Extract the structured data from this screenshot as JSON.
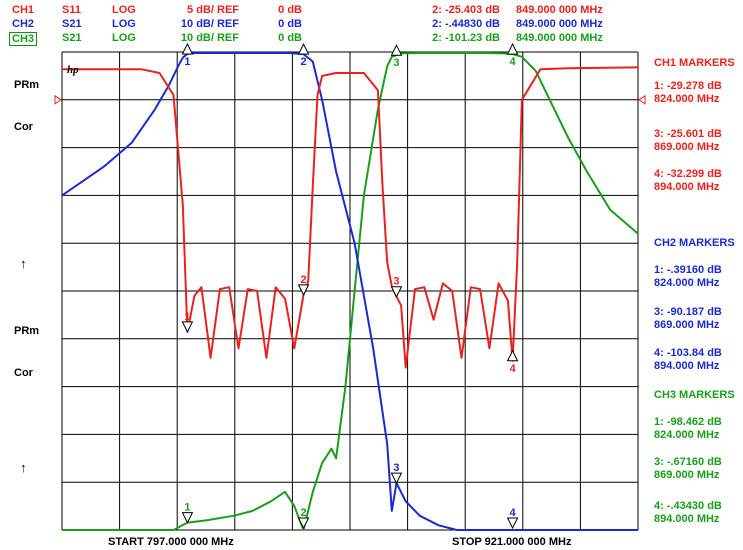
{
  "header": {
    "channels": [
      {
        "ch": "CH1",
        "param": "S11",
        "format": "LOG",
        "scale": "5 dB/ REF",
        "ref": "0 dB",
        "marker_value": "2: -25.403 dB",
        "marker_freq": "849.000 000 MHz",
        "color": "#e8221e",
        "boxed": false
      },
      {
        "ch": "CH2",
        "param": "S21",
        "format": "LOG",
        "scale": "10 dB/ REF",
        "ref": "0 dB",
        "marker_value": "2: -.44830 dB",
        "marker_freq": "849.000 000 MHz",
        "color": "#1a2ad0",
        "boxed": false
      },
      {
        "ch": "CH3",
        "param": "S21",
        "format": "LOG",
        "scale": "10 dB/ REF",
        "ref": "0 dB",
        "marker_value": "2: -101.23 dB",
        "marker_freq": "849.000 000 MHz",
        "color": "#1a9e1a",
        "boxed": true
      }
    ]
  },
  "left_labels": {
    "prm1": "PRm",
    "cor1": "Cor",
    "arrow1": "↑",
    "prm2": "PRm",
    "cor2": "Cor",
    "arrow2": "↑"
  },
  "logo": "hp",
  "footer": {
    "start": "START 797.000 000 MHz",
    "stop": "STOP  921.000 000 MHz"
  },
  "side_panel": {
    "ch1": {
      "title": "CH1 MARKERS",
      "color": "#e8221e",
      "entries": [
        [
          "1: -29.278 dB",
          "824.000 MHz"
        ],
        [
          "3: -25.601 dB",
          "869.000 MHz"
        ],
        [
          "4: -32.299 dB",
          "894.000 MHz"
        ]
      ]
    },
    "ch2": {
      "title": "CH2 MARKERS",
      "color": "#1a2ad0",
      "entries": [
        [
          "1: -.39160 dB",
          "824.000 MHz"
        ],
        [
          "3: -90.187 dB",
          "869.000 MHz"
        ],
        [
          "4: -103.84 dB",
          "894.000 MHz"
        ]
      ]
    },
    "ch3": {
      "title": "CH3 MARKERS",
      "color": "#1a9e1a",
      "entries": [
        [
          "1: -98.462 dB",
          "824.000 MHz"
        ],
        [
          "3: -.67160 dB",
          "869.000 MHz"
        ],
        [
          "4: -.43430 dB",
          "894.000 MHz"
        ]
      ]
    }
  },
  "chart_data": {
    "type": "line",
    "x_range_mhz": [
      797,
      921
    ],
    "grid": true,
    "series": [
      {
        "name": "CH1",
        "color": "#e8221e",
        "unit": "dB",
        "scale_db_per_div": 5,
        "ref_db": 0,
        "x": [
          797,
          814,
          818,
          821,
          823,
          824,
          825.5,
          827,
          829,
          831,
          833,
          835,
          837,
          839,
          841,
          843,
          845,
          847,
          849,
          850,
          851,
          852,
          853,
          856,
          862,
          865,
          866,
          867,
          868,
          869,
          870,
          871,
          873,
          875,
          877,
          879,
          881,
          883,
          885,
          887,
          889,
          891,
          893,
          894,
          895,
          896,
          900,
          906,
          921
        ],
        "y": [
          -1.8,
          -1.8,
          -2.2,
          -4.5,
          -16,
          -29.278,
          -25.5,
          -24.6,
          -32,
          -24.8,
          -24.6,
          -31,
          -24.8,
          -25,
          -32,
          -24.6,
          -25.8,
          -31,
          -25.403,
          -24,
          -14,
          -4.5,
          -2.5,
          -2.2,
          -2.2,
          -4,
          -14,
          -22,
          -24.5,
          -25.601,
          -26.5,
          -33,
          -24.8,
          -24.6,
          -28,
          -24.2,
          -25,
          -32,
          -24.6,
          -24.8,
          -31,
          -24.2,
          -26,
          -32.299,
          -22,
          -5,
          -1.8,
          -1.7,
          -1.6
        ]
      },
      {
        "name": "CH2",
        "color": "#1a2ad0",
        "unit": "dB",
        "scale_db_per_div": 10,
        "ref_db": 0,
        "x": [
          797,
          806,
          812,
          817,
          820,
          822,
          823,
          824,
          826,
          830,
          840,
          846,
          849,
          851,
          853,
          856,
          860,
          864,
          867,
          868,
          869,
          871,
          874,
          878,
          882,
          886,
          890,
          894,
          897,
          902,
          910,
          921
        ],
        "y": [
          -30,
          -24,
          -19,
          -12,
          -7,
          -3,
          -1.2,
          -0.3916,
          -0.2,
          -0.2,
          -0.2,
          -0.2,
          -0.4483,
          -2,
          -10,
          -25,
          -40,
          -62,
          -82,
          -96,
          -90.187,
          -94,
          -97,
          -99,
          -101,
          -102,
          -103,
          -103.84,
          -104,
          -104,
          -104,
          -104
        ]
      },
      {
        "name": "CH3",
        "color": "#1a9e1a",
        "unit": "dB",
        "scale_db_per_div": 10,
        "ref_db": 0,
        "x": [
          797,
          805,
          812,
          818,
          821,
          824,
          828,
          834,
          838,
          842,
          845,
          847,
          849,
          851,
          853,
          855,
          856,
          858,
          860,
          862,
          865,
          867,
          868,
          869,
          870,
          874,
          880,
          888,
          892,
          894,
          896,
          899,
          902,
          906,
          910,
          915,
          921
        ],
        "y": [
          -104,
          -104,
          -104,
          -103,
          -100,
          -98.462,
          -98,
          -97,
          -96,
          -94,
          -92,
          -95,
          -101.23,
          -92,
          -86,
          -83,
          -85,
          -70,
          -50,
          -30,
          -12,
          -3,
          -1,
          -0.6716,
          -0.3,
          -0.2,
          -0.2,
          -0.2,
          -0.3,
          -0.4343,
          -1,
          -4,
          -10,
          -18,
          -25,
          -33,
          -38
        ]
      }
    ],
    "markers": [
      {
        "channel": "CH1",
        "items": [
          {
            "n": "1",
            "x": 824
          },
          {
            "n": "2",
            "x": 849
          },
          {
            "n": "3",
            "x": 869
          },
          {
            "n": "4",
            "x": 894
          }
        ]
      },
      {
        "channel": "CH2",
        "items": [
          {
            "n": "1",
            "x": 824
          },
          {
            "n": "2",
            "x": 849
          },
          {
            "n": "3",
            "x": 869
          },
          {
            "n": "4",
            "x": 894
          }
        ]
      },
      {
        "channel": "CH3",
        "items": [
          {
            "n": "1",
            "x": 824
          },
          {
            "n": "2",
            "x": 849
          },
          {
            "n": "3",
            "x": 869
          },
          {
            "n": "4",
            "x": 894
          }
        ]
      }
    ],
    "reference_position_db": 0
  }
}
